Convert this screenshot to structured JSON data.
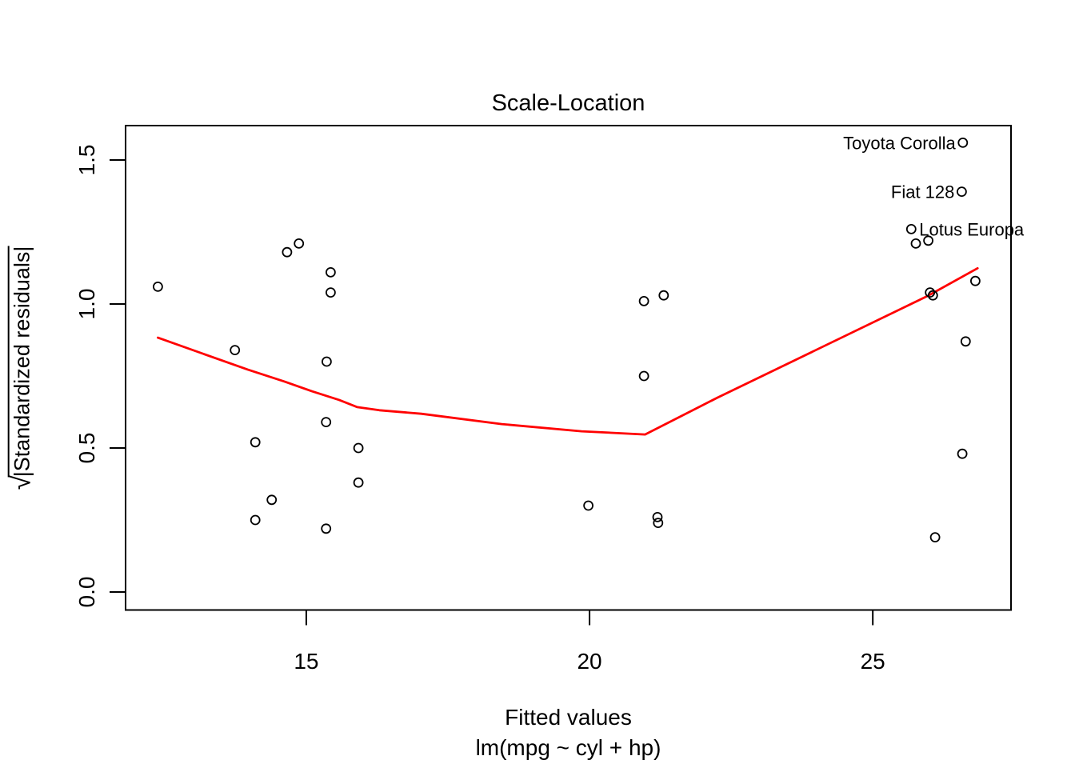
{
  "chart_data": {
    "type": "scatter",
    "title": "Scale-Location",
    "xlabel": "Fitted values",
    "xlabel_sub": "lm(mpg ~ cyl + hp)",
    "ylabel": "√|Standardized residuals|",
    "ylabel_radical": "√",
    "ylabel_expr": "|Standardized residuals|",
    "xlim": [
      11.81,
      27.44
    ],
    "ylim": [
      -0.0625,
      1.6194
    ],
    "grid": false,
    "legend": "none",
    "x_tick_values": [
      15,
      20,
      25
    ],
    "x_tick_labels": [
      "15",
      "20",
      "25"
    ],
    "y_tick_values": [
      0.0,
      0.5,
      1.0,
      1.5
    ],
    "y_tick_labels": [
      "0.0",
      "0.5",
      "1.0",
      "1.5"
    ],
    "point_color": "#000000",
    "smooth_color": "#FF0000",
    "points": [
      {
        "x": 12.38,
        "y": 1.06
      },
      {
        "x": 13.74,
        "y": 0.84
      },
      {
        "x": 14.66,
        "y": 1.18
      },
      {
        "x": 14.87,
        "y": 1.21
      },
      {
        "x": 15.43,
        "y": 1.11
      },
      {
        "x": 15.43,
        "y": 1.04
      },
      {
        "x": 15.36,
        "y": 0.8
      },
      {
        "x": 15.35,
        "y": 0.59
      },
      {
        "x": 14.1,
        "y": 0.52
      },
      {
        "x": 15.92,
        "y": 0.5
      },
      {
        "x": 15.92,
        "y": 0.38
      },
      {
        "x": 14.39,
        "y": 0.32
      },
      {
        "x": 14.1,
        "y": 0.25
      },
      {
        "x": 15.35,
        "y": 0.22
      },
      {
        "x": 20.96,
        "y": 1.01
      },
      {
        "x": 21.31,
        "y": 1.03
      },
      {
        "x": 20.96,
        "y": 0.75
      },
      {
        "x": 19.98,
        "y": 0.3
      },
      {
        "x": 21.2,
        "y": 0.26
      },
      {
        "x": 21.21,
        "y": 0.24
      },
      {
        "x": 26.59,
        "y": 1.56,
        "label": "Toyota Corolla",
        "label_side": "left"
      },
      {
        "x": 26.57,
        "y": 1.39,
        "label": "Fiat 128",
        "label_side": "left"
      },
      {
        "x": 25.68,
        "y": 1.26,
        "label": "Lotus Europa",
        "label_side": "right"
      },
      {
        "x": 25.76,
        "y": 1.21
      },
      {
        "x": 25.98,
        "y": 1.22
      },
      {
        "x": 26.01,
        "y": 1.04
      },
      {
        "x": 26.06,
        "y": 1.03
      },
      {
        "x": 26.81,
        "y": 1.08
      },
      {
        "x": 26.64,
        "y": 0.87
      },
      {
        "x": 26.58,
        "y": 0.48
      },
      {
        "x": 26.1,
        "y": 0.19
      }
    ],
    "smooth_line": [
      [
        12.38,
        0.883
      ],
      [
        13.97,
        0.772
      ],
      [
        14.61,
        0.731
      ],
      [
        15.1,
        0.697
      ],
      [
        15.58,
        0.667
      ],
      [
        15.9,
        0.642
      ],
      [
        16.29,
        0.631
      ],
      [
        17.03,
        0.619
      ],
      [
        18.45,
        0.583
      ],
      [
        19.86,
        0.558
      ],
      [
        20.98,
        0.547
      ],
      [
        22.26,
        0.675
      ],
      [
        25.97,
        1.028
      ],
      [
        26.85,
        1.124
      ]
    ]
  }
}
